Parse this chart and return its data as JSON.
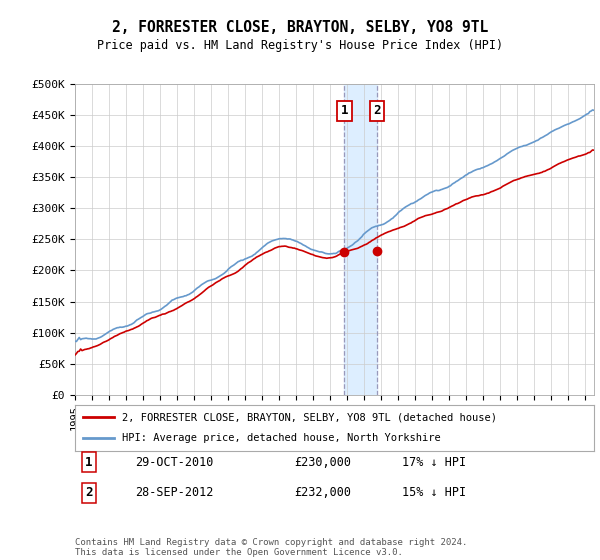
{
  "title": "2, FORRESTER CLOSE, BRAYTON, SELBY, YO8 9TL",
  "subtitle": "Price paid vs. HM Land Registry's House Price Index (HPI)",
  "ylabel_ticks": [
    "£0",
    "£50K",
    "£100K",
    "£150K",
    "£200K",
    "£250K",
    "£300K",
    "£350K",
    "£400K",
    "£450K",
    "£500K"
  ],
  "ylim": [
    0,
    500000
  ],
  "xlim_start": 1995.0,
  "xlim_end": 2025.5,
  "purchase1_x": 2010.83,
  "purchase1_y": 230000,
  "purchase2_x": 2012.75,
  "purchase2_y": 232000,
  "legend_house": "2, FORRESTER CLOSE, BRAYTON, SELBY, YO8 9TL (detached house)",
  "legend_hpi": "HPI: Average price, detached house, North Yorkshire",
  "footer": "Contains HM Land Registry data © Crown copyright and database right 2024.\nThis data is licensed under the Open Government Licence v3.0.",
  "house_color": "#cc0000",
  "hpi_color": "#6699cc",
  "highlight_color": "#ddeeff",
  "grid_color": "#cccccc",
  "bg_color": "#ffffff"
}
